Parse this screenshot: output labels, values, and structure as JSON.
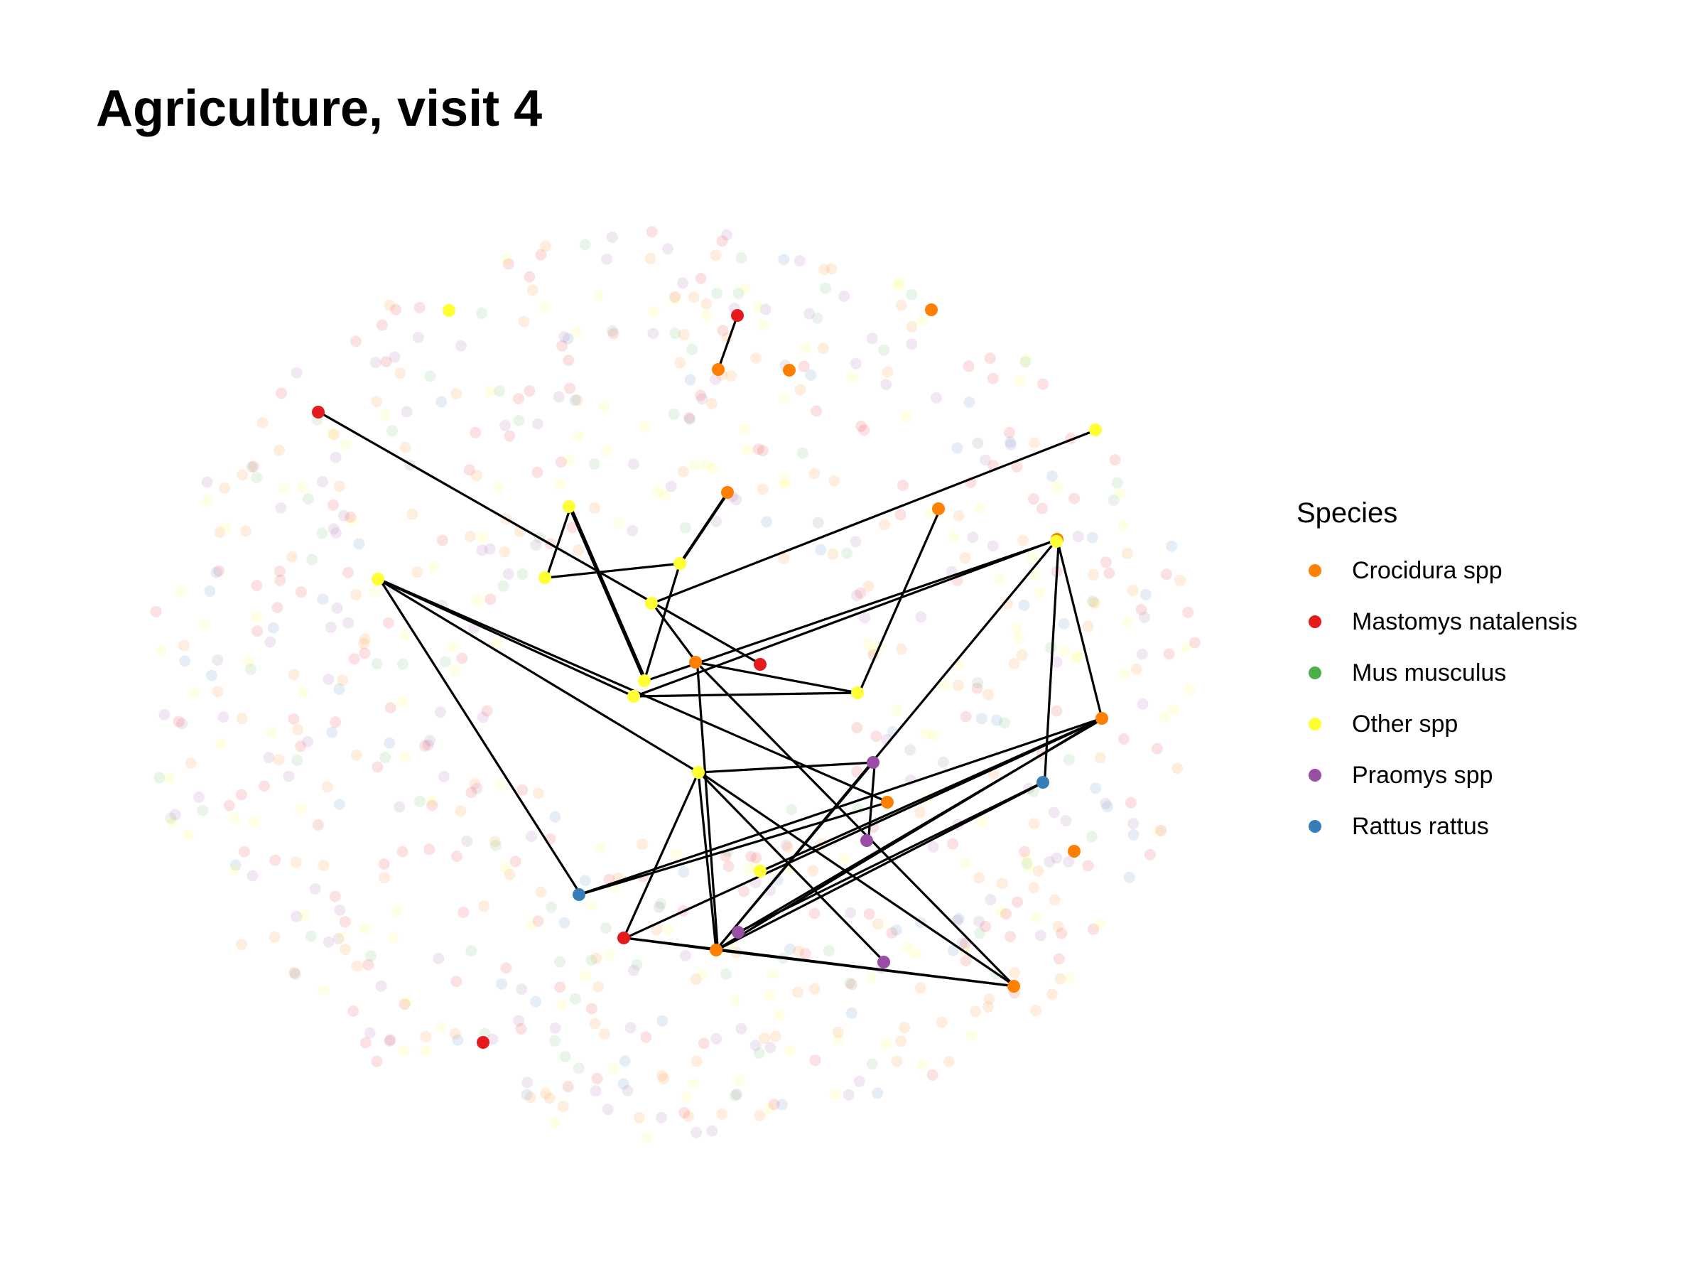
{
  "title": "Agriculture, visit 4",
  "legend": {
    "title": "Species",
    "items": [
      {
        "label": "Crocidura spp",
        "color": "#ff7f00",
        "key": "C"
      },
      {
        "label": "Mastomys natalensis",
        "color": "#e41a1c",
        "key": "M"
      },
      {
        "label": "Mus musculus",
        "color": "#4daf4a",
        "key": "U"
      },
      {
        "label": "Other spp",
        "color": "#ffff33",
        "key": "O"
      },
      {
        "label": "Praomys spp",
        "color": "#984ea3",
        "key": "P"
      },
      {
        "label": "Rattus rattus",
        "color": "#377eb8",
        "key": "R"
      }
    ]
  },
  "chart_data": {
    "type": "network",
    "background_node_count": 760,
    "highlighted_nodes": [
      {
        "id": "n01",
        "species": "C"
      },
      {
        "id": "n02",
        "species": "M"
      },
      {
        "id": "n03",
        "species": "O"
      },
      {
        "id": "n04",
        "species": "M"
      },
      {
        "id": "n05",
        "species": "C"
      },
      {
        "id": "n06",
        "species": "C"
      },
      {
        "id": "n07",
        "species": "O"
      },
      {
        "id": "n08",
        "species": "O"
      },
      {
        "id": "n09",
        "species": "C"
      },
      {
        "id": "n10",
        "species": "C"
      },
      {
        "id": "n11",
        "species": "O"
      },
      {
        "id": "n12",
        "species": "O"
      },
      {
        "id": "n13",
        "species": "O"
      },
      {
        "id": "n14",
        "species": "C"
      },
      {
        "id": "n15",
        "species": "O"
      },
      {
        "id": "n16",
        "species": "O"
      },
      {
        "id": "n17",
        "species": "C"
      },
      {
        "id": "n18",
        "species": "M"
      },
      {
        "id": "n19",
        "species": "O"
      },
      {
        "id": "n20",
        "species": "O"
      },
      {
        "id": "n21",
        "species": "O"
      },
      {
        "id": "n22",
        "species": "C"
      },
      {
        "id": "n23",
        "species": "P"
      },
      {
        "id": "n24",
        "species": "R"
      },
      {
        "id": "n25",
        "species": "C"
      },
      {
        "id": "n26",
        "species": "O"
      },
      {
        "id": "n27",
        "species": "P"
      },
      {
        "id": "n28",
        "species": "O"
      },
      {
        "id": "n29",
        "species": "C"
      },
      {
        "id": "n30",
        "species": "R"
      },
      {
        "id": "n31",
        "species": "M"
      },
      {
        "id": "n32",
        "species": "P"
      },
      {
        "id": "n33",
        "species": "C"
      },
      {
        "id": "n34",
        "species": "P"
      },
      {
        "id": "n35",
        "species": "C"
      },
      {
        "id": "n36",
        "species": "M"
      }
    ],
    "edges": [
      [
        "n04",
        "n05"
      ],
      [
        "n02",
        "n18"
      ],
      [
        "n08",
        "n16"
      ],
      [
        "n08",
        "n16"
      ],
      [
        "n08",
        "n16"
      ],
      [
        "n08",
        "n13"
      ],
      [
        "n09",
        "n12"
      ],
      [
        "n12",
        "n09"
      ],
      [
        "n12",
        "n13"
      ],
      [
        "n12",
        "n16"
      ],
      [
        "n07",
        "n15"
      ],
      [
        "n10",
        "n21"
      ],
      [
        "n21",
        "n17"
      ],
      [
        "n17",
        "n15"
      ],
      [
        "n16",
        "n14"
      ],
      [
        "n14",
        "n22"
      ],
      [
        "n14",
        "n19"
      ],
      [
        "n14",
        "n24"
      ],
      [
        "n11",
        "n26"
      ],
      [
        "n11",
        "n25"
      ],
      [
        "n11",
        "n30"
      ],
      [
        "n11",
        "n19"
      ],
      [
        "n21",
        "n19"
      ],
      [
        "n26",
        "n23"
      ],
      [
        "n26",
        "n33"
      ],
      [
        "n26",
        "n34"
      ],
      [
        "n26",
        "n35"
      ],
      [
        "n26",
        "n31"
      ],
      [
        "n17",
        "n35"
      ],
      [
        "n17",
        "n33"
      ],
      [
        "n30",
        "n22"
      ],
      [
        "n30",
        "n25"
      ],
      [
        "n23",
        "n27"
      ],
      [
        "n23",
        "n33"
      ],
      [
        "n31",
        "n33"
      ],
      [
        "n31",
        "n22"
      ],
      [
        "n24",
        "n32"
      ],
      [
        "n24",
        "n33"
      ],
      [
        "n22",
        "n32"
      ],
      [
        "n22",
        "n33"
      ],
      [
        "n33",
        "n35"
      ],
      [
        "n31",
        "n35"
      ],
      [
        "n14",
        "n33"
      ],
      [
        "n22",
        "n28"
      ]
    ]
  }
}
